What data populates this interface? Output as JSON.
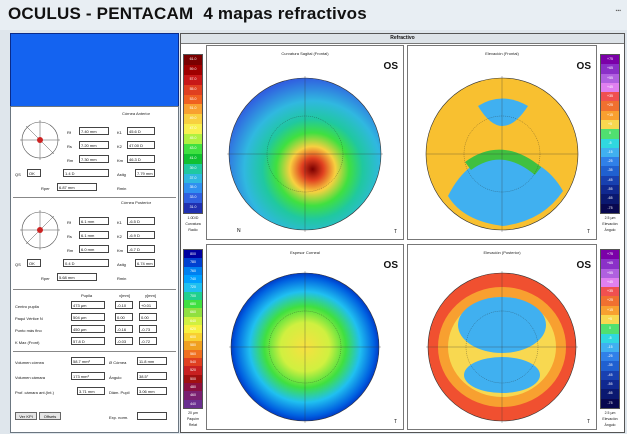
{
  "header": {
    "app_title": "OCULUS - PENTACAM",
    "subtitle": "4 mapas refractivos"
  },
  "right": {
    "header_label": "Refractivo"
  },
  "maps": [
    {
      "title": "Curvatura Sagital (Frontal)",
      "eye": "OS",
      "side_label": "T"
    },
    {
      "title": "Elevación (Frontal)",
      "eye": "OS",
      "side_label": "T"
    },
    {
      "title": "Espesor Corneal",
      "eye": "OS",
      "side_label": "T"
    },
    {
      "title": "Elevación (Posterior)",
      "eye": "OS",
      "side_label": "T"
    }
  ],
  "left": {
    "front": {
      "title": "Córnea Anterior",
      "rf_label": "Rf",
      "rf": "7.40 mm",
      "k1_label": "K1",
      "k1": "45.6 D",
      "rs_label": "Rs",
      "rs": "7.20 mm",
      "k2_label": "K2",
      "k2": "47.00 D",
      "rm_label": "Rm",
      "rm": "7.30 mm",
      "km_label": "Km",
      "km": "46.3 D",
      "qs_label": "QS",
      "qs": "OK",
      "astig_label": "Astig",
      "astig": "1.4 D",
      "rper_label": "Rper",
      "rper": "7.79 mm",
      "rmin_label": "Rmin",
      "rmin": "6.87 mm"
    },
    "back": {
      "title": "Córnea Posterior",
      "rf_label": "Rf",
      "rf": "6.1 mm",
      "k1_label": "K1",
      "k1": "-6.5 D",
      "rs_label": "Rs",
      "rs": "6.1 mm",
      "k2_label": "K2",
      "k2": "-6.9 D",
      "rm_label": "Rm",
      "rm": "6.0 mm",
      "km_label": "Km",
      "km": "-6.7 D",
      "qs_label": "QS",
      "qs": "OK",
      "astig_label": "Astig",
      "astig": "0.4 D",
      "rper_label": "Rper",
      "rper": "6.74 mm",
      "rmin_label": "Rmin",
      "rmin": "5.68 mm"
    },
    "pachy": {
      "col1": "Pupila",
      "col2": "x[mm]",
      "col3": "y[mm]",
      "centro_label": "Centro pupila",
      "centro": "473 µm",
      "centro_x": "-0.10",
      "centro_y": "+0.01",
      "vertex_label": "Paqui Vértice N",
      "vertex": "504 µm",
      "vertex_x": "0.00",
      "vertex_y": "0.00",
      "thin_label": "Punto más fino",
      "thin": "450 µm",
      "thin_x": "-0.16",
      "thin_y": "-0.73",
      "kmax_label": "K Max (Front)",
      "kmax": "57.8 D",
      "kmax_x": "-0.03",
      "kmax_y": "-0.72"
    },
    "volume": {
      "vol_label": "Volumen córnea",
      "vol": "58.7 mm³",
      "diam_label": "Ø Córnea",
      "diam": "11.8 mm",
      "chamber_label": "Volumen cámara",
      "chamber": "173 mm³",
      "angle_label": "Ángulo",
      "angle": "38.5°",
      "depth_label": "Prof. cámara ant.(Int.)",
      "depth": "3.71 mm",
      "pupil_label": "Diám. Pupil",
      "pupil": "3.06 mm"
    },
    "buttons": {
      "b1": "Ver KPI",
      "b2": "Offsets",
      "b3": "Exp. norm."
    }
  },
  "scales": {
    "left_top": [
      "61.0",
      "59.0",
      "57.0",
      "55.0",
      "53.0",
      "51.0",
      "49.0",
      "47.0",
      "45.0",
      "43.0",
      "41.0",
      "39.0",
      "37.0",
      "35.0",
      "33.0",
      "31.0"
    ],
    "left_top_foot": [
      "1.0D/D",
      "Curvatura",
      "Radio"
    ],
    "right_top": [
      "+75",
      "+65",
      "+55",
      "+45",
      "+35",
      "+25",
      "+15",
      "+5",
      "0",
      "-5",
      "-15",
      "-25",
      "-35",
      "-45",
      "-55",
      "-65",
      "-75"
    ],
    "right_top_foot": [
      "2.5 µm",
      "Elevación",
      "Ángulo"
    ],
    "left_bot": [
      "800",
      "780",
      "760",
      "740",
      "720",
      "700",
      "680",
      "660",
      "640",
      "620",
      "600",
      "580",
      "560",
      "540",
      "520",
      "500",
      "480",
      "460",
      "440"
    ],
    "left_bot_foot": [
      "20 µm",
      "Paquím",
      "Relat"
    ],
    "right_bot": [
      "+75",
      "+65",
      "+55",
      "+45",
      "+35",
      "+25",
      "+15",
      "+5",
      "0",
      "-5",
      "-15",
      "-25",
      "-35",
      "-45",
      "-55",
      "-65",
      "-75"
    ],
    "right_bot_foot": [
      "2.5 µm",
      "Elevación",
      "Ángulo"
    ]
  },
  "colors": {
    "blue_box": "#1463f0",
    "scale_top_left": [
      "#7a0000",
      "#a00000",
      "#c81818",
      "#e04020",
      "#f06020",
      "#f8a030",
      "#f8d040",
      "#f8f050",
      "#b0f040",
      "#40e040",
      "#10c030",
      "#20c8a0",
      "#30b8e0",
      "#3090f0",
      "#3060e0",
      "#2030b0"
    ],
    "scale_elev": [
      "#7b00a8",
      "#8b30c8",
      "#b060e0",
      "#e080f0",
      "#f05050",
      "#f07030",
      "#f8a030",
      "#f8d850",
      "#50e070",
      "#30d8e0",
      "#40b0f0",
      "#3080e8",
      "#2060d0",
      "#1840b0",
      "#102890",
      "#0a1870",
      "#080850"
    ],
    "scale_pachy": [
      "#0000a0",
      "#0040d0",
      "#0080f0",
      "#00a0ff",
      "#20c0f0",
      "#20d090",
      "#40e040",
      "#90e040",
      "#d0f040",
      "#f8f040",
      "#f8d030",
      "#f0a020",
      "#f07020",
      "#e04020",
      "#c82020",
      "#a01010",
      "#8b1040",
      "#7a2070",
      "#6a3090"
    ]
  }
}
